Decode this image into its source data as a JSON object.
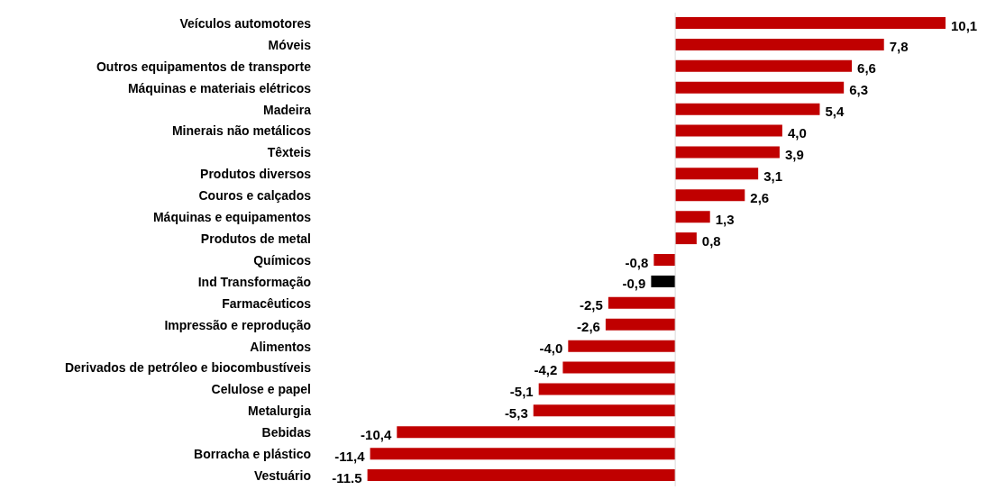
{
  "chart_data": {
    "type": "bar",
    "orientation": "horizontal",
    "categories": [
      "Veículos automotores",
      "Móveis",
      "Outros equipamentos de transporte",
      "Máquinas e materiais elétricos",
      "Madeira",
      "Minerais não metálicos",
      "Têxteis",
      "Produtos diversos",
      "Couros e calçados",
      "Máquinas e equipamentos",
      "Produtos de metal",
      "Químicos",
      "Ind Transformação",
      "Farmacêuticos",
      "Impressão e reprodução",
      "Alimentos",
      "Derivados de petróleo e biocombustíveis",
      "Celulose e papel",
      "Metalurgia",
      "Bebidas",
      "Borracha e plástico",
      "Vestuário"
    ],
    "values": [
      10.1,
      7.8,
      6.6,
      6.3,
      5.4,
      4.0,
      3.9,
      3.1,
      2.6,
      1.3,
      0.8,
      -0.8,
      -0.9,
      -2.5,
      -2.6,
      -4.0,
      -4.2,
      -5.1,
      -5.3,
      -10.4,
      -11.4,
      -11.5
    ],
    "value_labels": [
      "10,1",
      "7,8",
      "6,6",
      "6,3",
      "5,4",
      "4,0",
      "3,9",
      "3,1",
      "2,6",
      "1,3",
      "0,8",
      "-0,8",
      "-0,9",
      "-2,5",
      "-2,6",
      "-4,0",
      "-4,2",
      "-5,1",
      "-5,3",
      "-10,4",
      "-11,4",
      "-11.5"
    ],
    "colors": [
      "#c00000",
      "#c00000",
      "#c00000",
      "#c00000",
      "#c00000",
      "#c00000",
      "#c00000",
      "#c00000",
      "#c00000",
      "#c00000",
      "#c00000",
      "#c00000",
      "#000000",
      "#c00000",
      "#c00000",
      "#c00000",
      "#c00000",
      "#c00000",
      "#c00000",
      "#c00000",
      "#c00000",
      "#c00000"
    ],
    "ref_lines": [
      {
        "axis": "x",
        "value": 0,
        "color": "#d9d9d9"
      }
    ],
    "grid": false,
    "legend": false
  }
}
